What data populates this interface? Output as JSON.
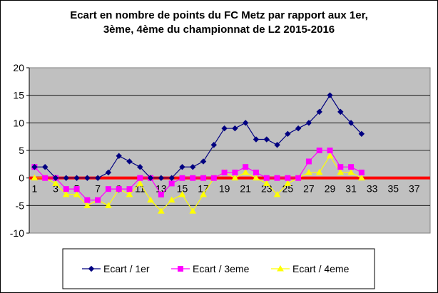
{
  "chart_data": {
    "type": "line",
    "title_lines": [
      "Ecart en nombre de points du FC Metz par rapport aux 1er,",
      "3ème, 4ème du championnat de L2 2015-2016"
    ],
    "xlabel": "",
    "ylabel": "",
    "x_range": [
      1,
      38
    ],
    "x_tick_labels": [
      "1",
      "3",
      "5",
      "7",
      "9",
      "11",
      "13",
      "15",
      "17",
      "19",
      "21",
      "23",
      "25",
      "27",
      "29",
      "31",
      "33",
      "35",
      "37"
    ],
    "ylim": [
      -10,
      20
    ],
    "y_ticks": [
      -10,
      -5,
      0,
      5,
      10,
      15,
      20
    ],
    "grid": true,
    "legend_position": "bottom",
    "colors": {
      "plot_background": "#c0c0c0",
      "zero_line": "#ff0000"
    },
    "series": [
      {
        "name": "Ecart / 1er",
        "color": "#000080",
        "marker": "diamond",
        "x": [
          1,
          2,
          3,
          4,
          5,
          6,
          7,
          8,
          9,
          10,
          11,
          12,
          13,
          14,
          15,
          16,
          17,
          18,
          19,
          20,
          21,
          22,
          23,
          24,
          25,
          26,
          27,
          28,
          29,
          30,
          31,
          32
        ],
        "values": [
          2,
          2,
          0,
          0,
          0,
          0,
          0,
          1,
          4,
          3,
          2,
          0,
          0,
          0,
          2,
          2,
          3,
          6,
          9,
          9,
          10,
          7,
          7,
          6,
          8,
          9,
          10,
          12,
          15,
          12,
          10,
          8
        ]
      },
      {
        "name": "Ecart / 3eme",
        "color": "#ff00ff",
        "marker": "square",
        "x": [
          1,
          2,
          3,
          4,
          5,
          6,
          7,
          8,
          9,
          10,
          11,
          12,
          13,
          14,
          15,
          16,
          17,
          18,
          19,
          20,
          21,
          22,
          23,
          24,
          25,
          26,
          27,
          28,
          29,
          30,
          31,
          32
        ],
        "values": [
          2,
          0,
          0,
          -2,
          -2,
          -4,
          -4,
          -2,
          -2,
          -2,
          0,
          0,
          -3,
          -1,
          0,
          0,
          0,
          0,
          1,
          1,
          2,
          1,
          0,
          0,
          0,
          0,
          3,
          5,
          5,
          2,
          2,
          1
        ]
      },
      {
        "name": "Ecart / 4eme",
        "color": "#ffff00",
        "marker": "triangle",
        "x": [
          1,
          2,
          3,
          4,
          5,
          6,
          7,
          8,
          9,
          10,
          11,
          12,
          13,
          14,
          15,
          16,
          17,
          18,
          19,
          20,
          21,
          22,
          23,
          24,
          25,
          26,
          27,
          28,
          29,
          30,
          31,
          32
        ],
        "values": [
          0,
          0,
          -1,
          -3,
          -3,
          -5,
          -4,
          -5,
          -2,
          -3,
          -1,
          -4,
          -6,
          -4,
          -3,
          -6,
          -3,
          0,
          1,
          0,
          1,
          0,
          -1,
          -3,
          -1,
          0,
          1,
          1,
          4,
          1,
          1,
          0
        ]
      }
    ]
  }
}
